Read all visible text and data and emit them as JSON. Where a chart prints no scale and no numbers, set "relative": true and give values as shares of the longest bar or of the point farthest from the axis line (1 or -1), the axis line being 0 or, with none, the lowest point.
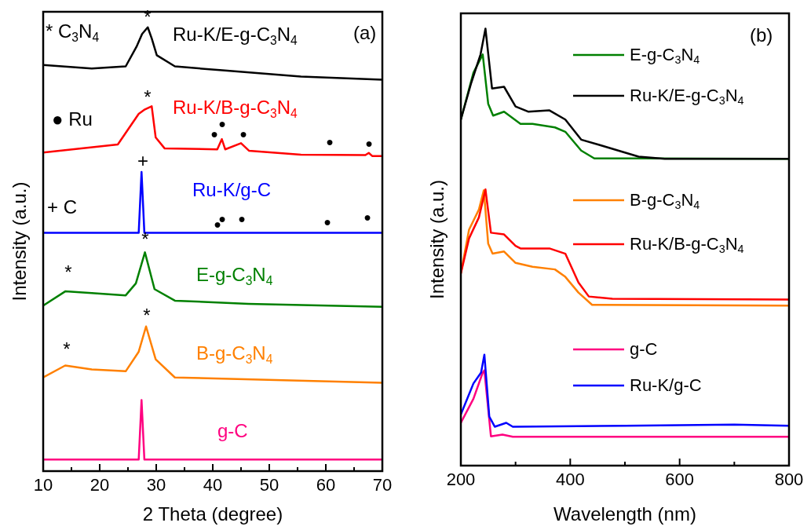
{
  "chart_data": [
    {
      "type": "line",
      "relative": true,
      "xlabel": "2 Theta (degree)",
      "ylabel": "Intensity (a.u.)",
      "xlim": [
        10,
        70
      ],
      "xticks": [
        10,
        {
          "value": 15,
          "label": null
        },
        20,
        {
          "value": 25,
          "label": null
        },
        30,
        {
          "value": 35,
          "label": null
        },
        40,
        {
          "value": 45,
          "label": null
        },
        50,
        {
          "value": 55,
          "label": null
        },
        60,
        {
          "value": 65,
          "label": null
        },
        70
      ],
      "legend": false,
      "series": [
        {
          "name": "Ru-K/E-g-C$_{3}$N$_{4}$",
          "color": "#000000",
          "x": [
            10,
            18.6,
            24.6,
            26.5,
            27.5,
            28.5,
            29.2,
            30.1,
            33.3,
            41.7,
            55.6,
            70
          ],
          "values": [
            0.915,
            0.907,
            0.912,
            0.956,
            0.985,
            1.0,
            0.975,
            0.937,
            0.912,
            0.903,
            0.889,
            0.882
          ]
        },
        {
          "name": "Ru-K/B-g-C$_{3}$N$_{4}$",
          "color": "#ff0000",
          "x": [
            10,
            23.2,
            26.9,
            28.0,
            29.2,
            29.9,
            31.5,
            40.8,
            41.6,
            42.2,
            45.0,
            46.4,
            55.6,
            67.0,
            67.6,
            68.2,
            70
          ],
          "values": [
            0.718,
            0.736,
            0.805,
            0.815,
            0.822,
            0.752,
            0.727,
            0.725,
            0.748,
            0.725,
            0.739,
            0.722,
            0.713,
            0.712,
            0.717,
            0.71,
            0.71
          ]
        },
        {
          "name": "Ru-K/g-C",
          "color": "#0000ff",
          "x": [
            10,
            26.9,
            27.4,
            27.9,
            70
          ],
          "values": [
            0.537,
            0.537,
            0.674,
            0.537,
            0.537
          ]
        },
        {
          "name": "E-g-C$_{3}$N$_{4}$",
          "color": "#008000",
          "x": [
            10,
            13.9,
            18.6,
            24.6,
            26.4,
            28.0,
            29.7,
            33.3,
            46.3,
            70
          ],
          "values": [
            0.373,
            0.405,
            0.401,
            0.396,
            0.423,
            0.493,
            0.41,
            0.384,
            0.377,
            0.37
          ]
        },
        {
          "name": "B-g-C$_{3}$N$_{4}$",
          "color": "#ff8000",
          "x": [
            10,
            13.9,
            18.6,
            24.6,
            26.9,
            28.2,
            29.9,
            33.3,
            70
          ],
          "values": [
            0.211,
            0.238,
            0.229,
            0.225,
            0.269,
            0.326,
            0.252,
            0.211,
            0.199
          ]
        },
        {
          "name": "g-C",
          "color": "#ff0080",
          "x": [
            10,
            26.9,
            27.4,
            27.9,
            70
          ],
          "values": [
            0.026,
            0.026,
            0.16,
            0.026,
            0.026
          ]
        }
      ],
      "annotations": [
        "* C$_{3}$N$_{4}$",
        "● Ru",
        "+ C",
        "(a)",
        "*",
        "*",
        "●",
        "●",
        "●",
        "●",
        "●",
        "+",
        "●",
        "●",
        "●",
        "●",
        "●",
        "*",
        "*",
        "*",
        "*"
      ]
    },
    {
      "type": "line",
      "relative": true,
      "xlabel": "Wavelength (nm)",
      "ylabel": "Intensity (a.u.)",
      "xlim": [
        200,
        800
      ],
      "xticks": [
        200,
        {
          "value": 300,
          "label": null
        },
        400,
        {
          "value": 500,
          "label": null
        },
        600,
        {
          "value": 700,
          "label": null
        },
        800
      ],
      "legend": "top right",
      "series": [
        {
          "name": "E-g-C$_{3}$N$_{4}$",
          "color": "#008000",
          "x": [
            200,
            223,
            240,
            250,
            259,
            279,
            309,
            331,
            372,
            391,
            420,
            444,
            525,
            800
          ],
          "values": [
            0.792,
            0.899,
            0.941,
            0.828,
            0.801,
            0.81,
            0.782,
            0.782,
            0.774,
            0.764,
            0.721,
            0.703,
            0.703,
            0.702
          ]
        },
        {
          "name": "Ru-K/E-g-C$_{3}$N$_{4}$",
          "color": "#000000",
          "x": [
            200,
            219,
            236,
            245,
            257,
            279,
            300,
            323,
            362,
            391,
            420,
            453,
            525,
            573,
            800
          ],
          "values": [
            0.792,
            0.876,
            0.941,
            1.0,
            0.863,
            0.867,
            0.822,
            0.81,
            0.813,
            0.792,
            0.746,
            0.734,
            0.707,
            0.702,
            0.702
          ]
        },
        {
          "name": "B-g-C$_{3}$N$_{4}$",
          "color": "#ff8000",
          "x": [
            200,
            215,
            233,
            242,
            250,
            258,
            279,
            300,
            331,
            372,
            391,
            415,
            440,
            800
          ],
          "values": [
            0.44,
            0.54,
            0.586,
            0.63,
            0.508,
            0.485,
            0.49,
            0.464,
            0.455,
            0.449,
            0.432,
            0.396,
            0.368,
            0.366
          ]
        },
        {
          "name": "Ru-K/B-g-C$_{3}$N$_{4}$",
          "color": "#ff0000",
          "x": [
            200,
            215,
            233,
            245,
            255,
            279,
            300,
            309,
            362,
            391,
            415,
            434,
            477,
            800
          ],
          "values": [
            0.44,
            0.52,
            0.568,
            0.632,
            0.533,
            0.529,
            0.503,
            0.497,
            0.497,
            0.485,
            0.419,
            0.387,
            0.382,
            0.38
          ]
        },
        {
          "name": "g-C",
          "color": "#ff0080",
          "x": [
            200,
            223,
            240,
            243,
            255,
            276,
            295,
            800
          ],
          "values": [
            0.098,
            0.153,
            0.213,
            0.218,
            0.067,
            0.071,
            0.066,
            0.066
          ]
        },
        {
          "name": "Ru-K/g-C",
          "color": "#0000ff",
          "x": [
            200,
            223,
            237,
            243,
            252,
            262,
            283,
            295,
            500,
            700,
            800
          ],
          "values": [
            0.117,
            0.188,
            0.213,
            0.254,
            0.112,
            0.089,
            0.098,
            0.089,
            0.091,
            0.094,
            0.091
          ]
        }
      ],
      "annotations": [
        "(b)"
      ]
    }
  ]
}
